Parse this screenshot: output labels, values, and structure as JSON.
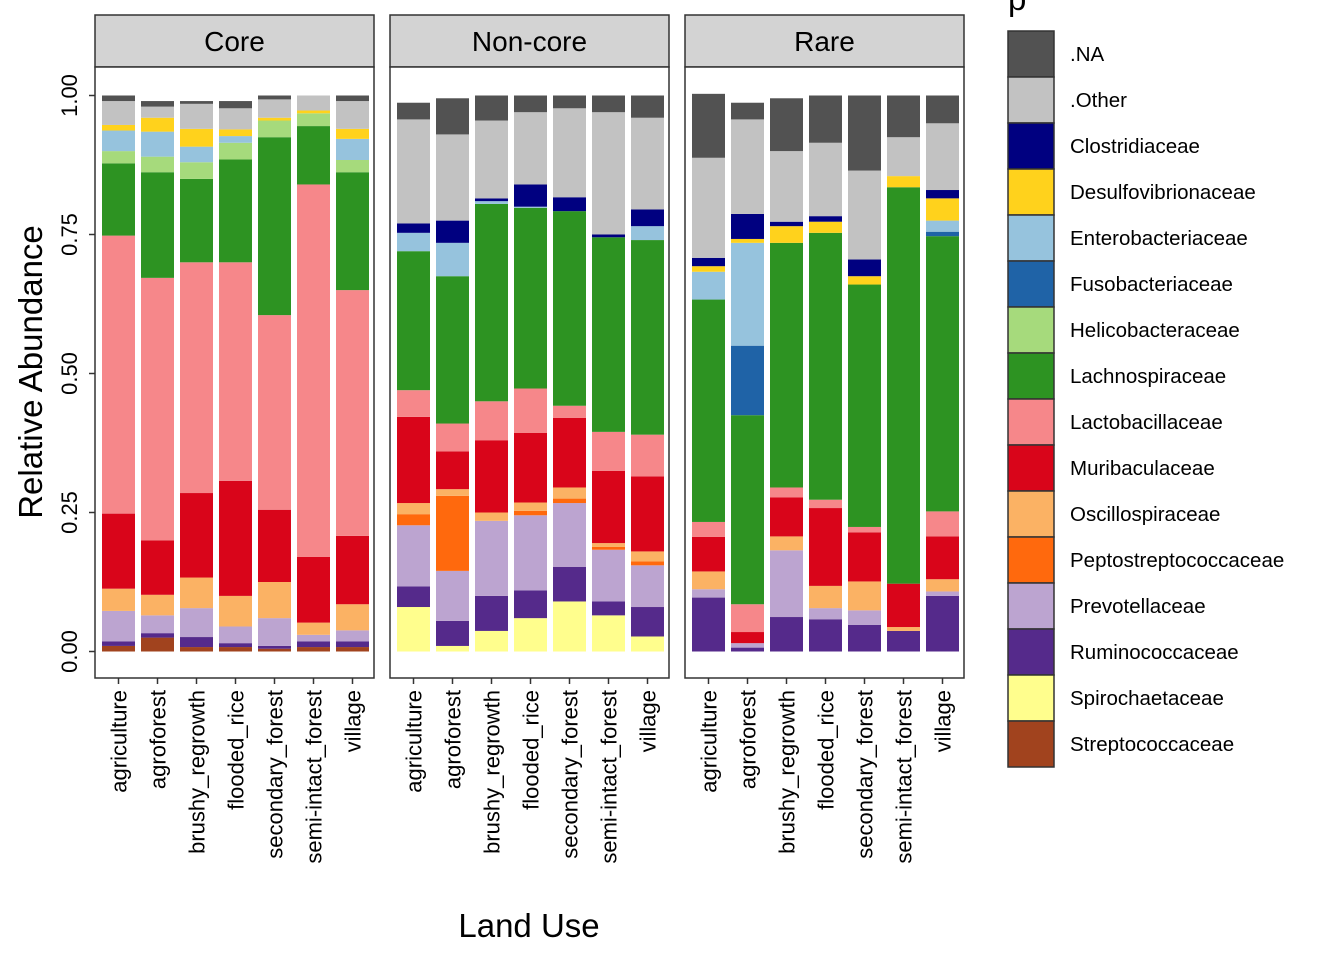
{
  "chart_data": {
    "type": "bar",
    "stacked": true,
    "xlabel": "Land Use",
    "ylabel": "Relative Abundance",
    "ylim": [
      0,
      1.05
    ],
    "yticks": [
      "0.00",
      "0.25",
      "0.50",
      "0.75",
      "1.00"
    ],
    "ytick_values": [
      0,
      0.25,
      0.5,
      0.75,
      1.0
    ],
    "categories": [
      "agriculture",
      "agroforest",
      "brushy_regrowth",
      "flooded_rice",
      "secondary_forest",
      "semi-intact_forest",
      "village"
    ],
    "grid": false,
    "legend_position": "right",
    "legend_title": "p",
    "legend": [
      {
        "name": ".NA",
        "color": "#525252"
      },
      {
        "name": ".Other",
        "color": "#c2c2c2"
      },
      {
        "name": "Clostridiaceae",
        "color": "#000080"
      },
      {
        "name": "Desulfovibrionaceae",
        "color": "#ffd21c"
      },
      {
        "name": "Enterobacteriaceae",
        "color": "#96c3dd"
      },
      {
        "name": "Fusobacteriaceae",
        "color": "#1f63a7"
      },
      {
        "name": "Helicobacteraceae",
        "color": "#a6da7c"
      },
      {
        "name": "Lachnospiraceae",
        "color": "#2d9322"
      },
      {
        "name": "Lactobacillaceae",
        "color": "#f6878a"
      },
      {
        "name": "Muribaculaceae",
        "color": "#d9051a"
      },
      {
        "name": "Oscillospiraceae",
        "color": "#fbb264"
      },
      {
        "name": "Peptostreptococcaceae",
        "color": "#ff690d"
      },
      {
        "name": "Prevotellaceae",
        "color": "#bca4d0"
      },
      {
        "name": "Ruminococcaceae",
        "color": "#552a8b"
      },
      {
        "name": "Spirochaetaceae",
        "color": "#fffe8d"
      },
      {
        "name": "Streptococcaceae",
        "color": "#a1431e"
      }
    ],
    "stack_order_bottom_to_top": [
      "Streptococcaceae",
      "Spirochaetaceae",
      "Ruminococcaceae",
      "Prevotellaceae",
      "Peptostreptococcaceae",
      "Oscillospiraceae",
      "Muribaculaceae",
      "Lactobacillaceae",
      "Lachnospiraceae",
      "Helicobacteraceae",
      "Fusobacteriaceae",
      "Enterobacteriaceae",
      "Desulfovibrionaceae",
      "Clostridiaceae",
      ".Other",
      ".NA"
    ],
    "panels": [
      {
        "name": "Core",
        "bars": [
          {
            "category": "agriculture",
            "values": {
              "Streptococcaceae": 0.01,
              "Ruminococcaceae": 0.008,
              "Prevotellaceae": 0.055,
              "Oscillospiraceae": 0.04,
              "Muribaculaceae": 0.135,
              "Lactobacillaceae": 0.5,
              "Lachnospiraceae": 0.13,
              "Helicobacteraceae": 0.022,
              "Enterobacteriaceae": 0.037,
              "Desulfovibrionaceae": 0.01,
              ".Other": 0.043,
              ".NA": 0.01
            }
          },
          {
            "category": "agroforest",
            "values": {
              "Streptococcaceae": 0.025,
              "Ruminococcaceae": 0.008,
              "Prevotellaceae": 0.032,
              "Oscillospiraceae": 0.037,
              "Muribaculaceae": 0.098,
              "Lactobacillaceae": 0.472,
              "Lachnospiraceae": 0.19,
              "Helicobacteraceae": 0.028,
              "Enterobacteriaceae": 0.045,
              "Desulfovibrionaceae": 0.025,
              ".Other": 0.02,
              ".NA": 0.01
            }
          },
          {
            "category": "brushy_regrowth",
            "values": {
              "Streptococcaceae": 0.008,
              "Ruminococcaceae": 0.018,
              "Prevotellaceae": 0.052,
              "Oscillospiraceae": 0.055,
              "Muribaculaceae": 0.152,
              "Lactobacillaceae": 0.415,
              "Lachnospiraceae": 0.15,
              "Helicobacteraceae": 0.03,
              "Enterobacteriaceae": 0.028,
              "Desulfovibrionaceae": 0.032,
              ".Other": 0.045,
              ".NA": 0.005
            }
          },
          {
            "category": "flooded_rice",
            "values": {
              "Streptococcaceae": 0.008,
              "Ruminococcaceae": 0.007,
              "Prevotellaceae": 0.03,
              "Oscillospiraceae": 0.055,
              "Muribaculaceae": 0.207,
              "Lactobacillaceae": 0.393,
              "Lachnospiraceae": 0.185,
              "Helicobacteraceae": 0.03,
              "Enterobacteriaceae": 0.012,
              "Desulfovibrionaceae": 0.012,
              ".Other": 0.038,
              ".NA": 0.013
            }
          },
          {
            "category": "secondary_forest",
            "values": {
              "Streptococcaceae": 0.005,
              "Ruminococcaceae": 0.005,
              "Prevotellaceae": 0.05,
              "Oscillospiraceae": 0.065,
              "Muribaculaceae": 0.13,
              "Lactobacillaceae": 0.35,
              "Lachnospiraceae": 0.32,
              "Helicobacteraceae": 0.03,
              "Desulfovibrionaceae": 0.005,
              ".Other": 0.033,
              ".NA": 0.007
            }
          },
          {
            "category": "semi-intact_forest",
            "values": {
              "Streptococcaceae": 0.008,
              "Ruminococcaceae": 0.01,
              "Prevotellaceae": 0.012,
              "Oscillospiraceae": 0.022,
              "Muribaculaceae": 0.118,
              "Lactobacillaceae": 0.67,
              "Lachnospiraceae": 0.105,
              "Helicobacteraceae": 0.023,
              "Desulfovibrionaceae": 0.005,
              ".Other": 0.027
            }
          },
          {
            "category": "village",
            "values": {
              "Streptococcaceae": 0.008,
              "Ruminococcaceae": 0.01,
              "Prevotellaceae": 0.02,
              "Oscillospiraceae": 0.047,
              "Muribaculaceae": 0.123,
              "Lactobacillaceae": 0.442,
              "Lachnospiraceae": 0.212,
              "Helicobacteraceae": 0.022,
              "Enterobacteriaceae": 0.038,
              "Desulfovibrionaceae": 0.018,
              ".Other": 0.05,
              ".NA": 0.01
            }
          }
        ]
      },
      {
        "name": "Non-core",
        "bars": [
          {
            "category": "agriculture",
            "values": {
              "Spirochaetaceae": 0.08,
              "Ruminococcaceae": 0.037,
              "Prevotellaceae": 0.11,
              "Peptostreptococcaceae": 0.02,
              "Oscillospiraceae": 0.02,
              "Muribaculaceae": 0.155,
              "Lactobacillaceae": 0.048,
              "Lachnospiraceae": 0.25,
              "Enterobacteriaceae": 0.033,
              "Clostridiaceae": 0.017,
              ".Other": 0.187,
              ".NA": 0.03
            }
          },
          {
            "category": "agroforest",
            "values": {
              "Spirochaetaceae": 0.01,
              "Ruminococcaceae": 0.045,
              "Prevotellaceae": 0.09,
              "Peptostreptococcaceae": 0.135,
              "Oscillospiraceae": 0.012,
              "Muribaculaceae": 0.068,
              "Lactobacillaceae": 0.05,
              "Lachnospiraceae": 0.265,
              "Enterobacteriaceae": 0.06,
              "Clostridiaceae": 0.04,
              ".Other": 0.155,
              ".NA": 0.065
            }
          },
          {
            "category": "brushy_regrowth",
            "values": {
              "Spirochaetaceae": 0.037,
              "Ruminococcaceae": 0.063,
              "Prevotellaceae": 0.135,
              "Oscillospiraceae": 0.015,
              "Muribaculaceae": 0.13,
              "Lactobacillaceae": 0.07,
              "Lachnospiraceae": 0.355,
              "Enterobacteriaceae": 0.005,
              "Clostridiaceae": 0.005,
              ".Other": 0.14,
              ".NA": 0.045
            }
          },
          {
            "category": "flooded_rice",
            "values": {
              "Spirochaetaceae": 0.06,
              "Ruminococcaceae": 0.05,
              "Prevotellaceae": 0.135,
              "Peptostreptococcaceae": 0.008,
              "Oscillospiraceae": 0.015,
              "Muribaculaceae": 0.125,
              "Lactobacillaceae": 0.08,
              "Lachnospiraceae": 0.325,
              "Enterobacteriaceae": 0.002,
              "Clostridiaceae": 0.04,
              ".Other": 0.13,
              ".NA": 0.03
            }
          },
          {
            "category": "secondary_forest",
            "values": {
              "Spirochaetaceae": 0.09,
              "Ruminococcaceae": 0.062,
              "Prevotellaceae": 0.115,
              "Peptostreptococcaceae": 0.008,
              "Oscillospiraceae": 0.02,
              "Muribaculaceae": 0.125,
              "Lactobacillaceae": 0.022,
              "Lachnospiraceae": 0.35,
              "Clostridiaceae": 0.025,
              ".Other": 0.16,
              ".NA": 0.023
            }
          },
          {
            "category": "semi-intact_forest",
            "values": {
              "Spirochaetaceae": 0.065,
              "Ruminococcaceae": 0.025,
              "Prevotellaceae": 0.093,
              "Peptostreptococcaceae": 0.005,
              "Oscillospiraceae": 0.007,
              "Muribaculaceae": 0.13,
              "Lactobacillaceae": 0.07,
              "Lachnospiraceae": 0.35,
              "Clostridiaceae": 0.005,
              ".Other": 0.22,
              ".NA": 0.03
            }
          },
          {
            "category": "village",
            "values": {
              "Spirochaetaceae": 0.027,
              "Ruminococcaceae": 0.053,
              "Prevotellaceae": 0.075,
              "Peptostreptococcaceae": 0.007,
              "Oscillospiraceae": 0.018,
              "Muribaculaceae": 0.135,
              "Lactobacillaceae": 0.075,
              "Lachnospiraceae": 0.35,
              "Enterobacteriaceae": 0.025,
              "Clostridiaceae": 0.03,
              ".Other": 0.165,
              ".NA": 0.04
            }
          }
        ]
      },
      {
        "name": "Rare",
        "bars": [
          {
            "category": "agriculture",
            "values": {
              "Ruminococcaceae": 0.097,
              "Prevotellaceae": 0.015,
              "Oscillospiraceae": 0.032,
              "Muribaculaceae": 0.062,
              "Lactobacillaceae": 0.027,
              "Lachnospiraceae": 0.4,
              "Enterobacteriaceae": 0.05,
              "Desulfovibrionaceae": 0.01,
              "Clostridiaceae": 0.015,
              ".Other": 0.18,
              ".NA": 0.115
            }
          },
          {
            "category": "agroforest",
            "values": {
              "Ruminococcaceae": 0.007,
              "Prevotellaceae": 0.008,
              "Muribaculaceae": 0.02,
              "Lactobacillaceae": 0.05,
              "Lachnospiraceae": 0.34,
              "Fusobacteriaceae": 0.125,
              "Enterobacteriaceae": 0.185,
              "Desulfovibrionaceae": 0.007,
              "Clostridiaceae": 0.045,
              ".Other": 0.17,
              ".NA": 0.03
            }
          },
          {
            "category": "brushy_regrowth",
            "values": {
              "Ruminococcaceae": 0.062,
              "Prevotellaceae": 0.12,
              "Oscillospiraceae": 0.025,
              "Muribaculaceae": 0.07,
              "Lactobacillaceae": 0.018,
              "Lachnospiraceae": 0.44,
              "Desulfovibrionaceae": 0.03,
              "Clostridiaceae": 0.008,
              ".Other": 0.127,
              ".NA": 0.095
            }
          },
          {
            "category": "flooded_rice",
            "values": {
              "Ruminococcaceae": 0.058,
              "Prevotellaceae": 0.02,
              "Oscillospiraceae": 0.04,
              "Muribaculaceae": 0.14,
              "Lactobacillaceae": 0.015,
              "Lachnospiraceae": 0.48,
              "Desulfovibrionaceae": 0.02,
              "Clostridiaceae": 0.01,
              ".Other": 0.132,
              ".NA": 0.085
            }
          },
          {
            "category": "secondary_forest",
            "values": {
              "Ruminococcaceae": 0.048,
              "Prevotellaceae": 0.026,
              "Oscillospiraceae": 0.052,
              "Muribaculaceae": 0.088,
              "Lactobacillaceae": 0.01,
              "Lachnospiraceae": 0.436,
              "Desulfovibrionaceae": 0.015,
              "Clostridiaceae": 0.03,
              ".Other": 0.16,
              ".NA": 0.135
            }
          },
          {
            "category": "semi-intact_forest",
            "values": {
              "Ruminococcaceae": 0.037,
              "Oscillospiraceae": 0.007,
              "Muribaculaceae": 0.078,
              "Lachnospiraceae": 0.713,
              "Desulfovibrionaceae": 0.02,
              ".Other": 0.07,
              ".NA": 0.075
            }
          },
          {
            "category": "village",
            "values": {
              "Ruminococcaceae": 0.1,
              "Prevotellaceae": 0.008,
              "Oscillospiraceae": 0.022,
              "Muribaculaceae": 0.077,
              "Lactobacillaceae": 0.045,
              "Lachnospiraceae": 0.495,
              "Fusobacteriaceae": 0.008,
              "Enterobacteriaceae": 0.02,
              "Desulfovibrionaceae": 0.04,
              "Clostridiaceae": 0.015,
              ".Other": 0.12,
              ".NA": 0.05
            }
          }
        ]
      }
    ]
  }
}
